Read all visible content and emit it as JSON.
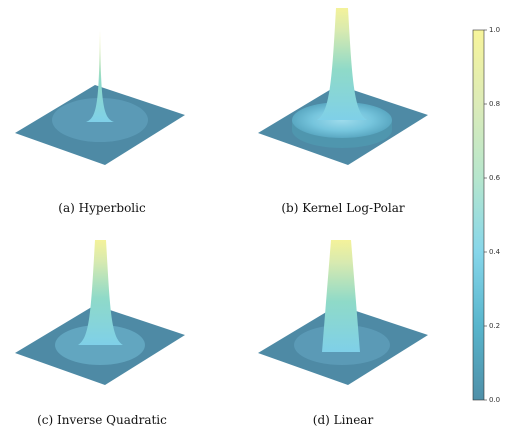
{
  "panels": [
    {
      "caption": "(a) Hyperbolic",
      "profile": "hyperbolic",
      "peak_value": 1.0
    },
    {
      "caption": "(b) Kernel Log-Polar",
      "profile": "log-polar",
      "peak_value": 1.0
    },
    {
      "caption": "(c) Inverse Quadratic",
      "profile": "inverse-quadratic",
      "peak_value": 1.0
    },
    {
      "caption": "(d) Linear",
      "profile": "linear",
      "peak_value": 1.0
    }
  ],
  "colorbar": {
    "min": 0.0,
    "max": 1.0,
    "ticks": [
      "0.0",
      "0.2",
      "0.4",
      "0.6",
      "0.8",
      "1.0"
    ],
    "colors": [
      "#4f8fa8",
      "#58b5cc",
      "#86d6ea",
      "#b6e6cd",
      "#dcebb8",
      "#f7f49a"
    ]
  }
}
